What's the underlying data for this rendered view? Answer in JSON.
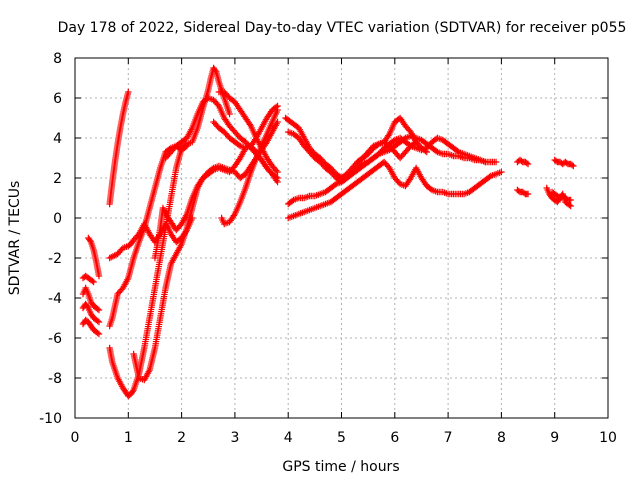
{
  "chart_data": {
    "type": "scatter",
    "title": "Day 178 of 2022, Sidereal Day-to-day VTEC variation (SDTVAR) for receiver p055",
    "xlabel": "GPS time / hours",
    "ylabel": "SDTVAR / TECUs",
    "xlim": [
      0,
      10
    ],
    "ylim": [
      -10,
      8
    ],
    "x_ticks": [
      "0",
      "1",
      "2",
      "3",
      "4",
      "5",
      "6",
      "7",
      "8",
      "9",
      "10"
    ],
    "y_ticks": [
      "-10",
      "-8",
      "-6",
      "-4",
      "-2",
      "0",
      "2",
      "4",
      "6",
      "8"
    ],
    "grid": true,
    "marker": "plus",
    "color": "#ff0000",
    "series": [
      {
        "x": [
          0.15,
          0.2,
          0.25,
          0.3,
          0.35
        ],
        "y": [
          -3.0,
          -2.9,
          -3.0,
          -3.1,
          -3.2
        ]
      },
      {
        "x": [
          0.15,
          0.2,
          0.25,
          0.3,
          0.35,
          0.4,
          0.45
        ],
        "y": [
          -3.8,
          -3.5,
          -3.8,
          -4.2,
          -4.4,
          -4.5,
          -4.6
        ]
      },
      {
        "x": [
          0.15,
          0.2,
          0.25,
          0.3,
          0.35,
          0.4,
          0.45
        ],
        "y": [
          -4.5,
          -4.3,
          -4.5,
          -4.8,
          -5.0,
          -5.1,
          -5.2
        ]
      },
      {
        "x": [
          0.15,
          0.2,
          0.25,
          0.3,
          0.35,
          0.4,
          0.45
        ],
        "y": [
          -5.3,
          -5.1,
          -5.2,
          -5.4,
          -5.6,
          -5.7,
          -5.8
        ]
      },
      {
        "x": [
          0.25,
          0.3,
          0.35,
          0.4,
          0.45
        ],
        "y": [
          -1.0,
          -1.2,
          -1.6,
          -2.2,
          -2.9
        ]
      },
      {
        "x": [
          0.65,
          0.7,
          0.75,
          0.8,
          0.85,
          0.9,
          0.95,
          1.0
        ],
        "y": [
          0.7,
          1.8,
          2.8,
          3.7,
          4.5,
          5.2,
          5.8,
          6.3
        ]
      },
      {
        "x": [
          0.65,
          0.8,
          0.9,
          1.0,
          1.05,
          1.1,
          1.2,
          1.3,
          1.4,
          1.5,
          1.6,
          1.7,
          1.75,
          1.8,
          1.9,
          2.0,
          2.1,
          2.2
        ],
        "y": [
          -2.0,
          -1.8,
          -1.5,
          -1.4,
          -1.3,
          -1.1,
          -0.8,
          -0.3,
          -0.8,
          -1.2,
          -0.8,
          -0.3,
          -0.5,
          -0.8,
          -1.2,
          -1.0,
          -0.6,
          0.0
        ]
      },
      {
        "x": [
          0.65,
          0.7,
          0.8,
          0.9,
          1.0,
          1.05,
          1.1,
          1.2,
          1.3,
          1.4,
          1.5,
          1.6,
          1.7,
          1.8,
          1.9,
          2.0,
          2.1
        ],
        "y": [
          -5.4,
          -5.0,
          -3.8,
          -3.5,
          -3.0,
          -2.5,
          -2.0,
          -1.2,
          -0.5,
          0.5,
          1.5,
          2.5,
          3.3,
          3.5,
          3.6,
          3.4,
          3.6
        ]
      },
      {
        "x": [
          0.65,
          0.7,
          0.8,
          0.9,
          0.95,
          1.0,
          1.05,
          1.1,
          1.2,
          1.3,
          1.4,
          1.5,
          1.6,
          1.7,
          1.8,
          1.9,
          2.0,
          2.1,
          2.2,
          2.3,
          2.4,
          2.5,
          2.55,
          2.6,
          2.65,
          2.7,
          2.8,
          2.9
        ],
        "y": [
          -6.5,
          -7.2,
          -8.0,
          -8.5,
          -8.7,
          -8.9,
          -8.8,
          -8.6,
          -7.8,
          -6.5,
          -5.0,
          -3.5,
          -2.0,
          -0.5,
          1.0,
          2.5,
          3.5,
          3.7,
          3.8,
          4.5,
          5.5,
          6.4,
          7.0,
          7.5,
          7.3,
          6.8,
          6.0,
          5.2
        ]
      },
      {
        "x": [
          1.1,
          1.15,
          1.2,
          1.3,
          1.4,
          1.5,
          1.6,
          1.7,
          1.8,
          1.9,
          2.0,
          2.1,
          2.2,
          2.3,
          2.4,
          2.5,
          2.6,
          2.7,
          2.8,
          2.9,
          3.0,
          3.1,
          3.2,
          3.3,
          3.4,
          3.5,
          3.6,
          3.7,
          3.8
        ],
        "y": [
          -6.8,
          -7.4,
          -8.0,
          -8.1,
          -7.6,
          -6.5,
          -5.0,
          -3.5,
          -2.3,
          -1.8,
          -1.3,
          -0.5,
          0.5,
          1.5,
          2.0,
          2.3,
          2.5,
          2.6,
          2.5,
          2.4,
          2.3,
          2.0,
          2.2,
          2.6,
          3.0,
          3.4,
          3.8,
          4.3,
          4.8
        ]
      },
      {
        "x": [
          1.5,
          1.6,
          1.65,
          1.7,
          1.8,
          1.9,
          2.0,
          2.1,
          2.2,
          2.3,
          2.4,
          2.5,
          2.6,
          2.7,
          2.8,
          2.9,
          3.0,
          3.1,
          3.2,
          3.3,
          3.4,
          3.5,
          3.6,
          3.7,
          3.8
        ],
        "y": [
          -2.0,
          -0.5,
          0.5,
          0.2,
          -0.2,
          -0.6,
          -0.3,
          0.2,
          1.0,
          1.6,
          2.0,
          2.2,
          2.4,
          2.5,
          2.4,
          2.3,
          2.6,
          3.0,
          3.5,
          3.6,
          3.3,
          2.9,
          2.5,
          2.2,
          2.0
        ]
      },
      {
        "x": [
          1.7,
          1.8,
          1.9,
          2.0,
          2.1,
          2.2,
          2.3,
          2.4,
          2.5,
          2.6,
          2.7,
          2.8,
          2.9,
          3.0,
          3.1,
          3.2,
          3.3,
          3.4,
          3.5,
          3.6,
          3.7,
          3.8
        ],
        "y": [
          3.0,
          3.3,
          3.6,
          3.8,
          4.0,
          4.5,
          5.2,
          5.8,
          6.0,
          5.9,
          5.6,
          5.0,
          4.6,
          4.3,
          4.0,
          3.8,
          3.5,
          3.2,
          2.9,
          2.5,
          2.2,
          1.8
        ]
      },
      {
        "x": [
          2.7,
          2.8,
          2.9,
          3.0,
          3.1,
          3.2,
          3.3,
          3.4,
          3.5,
          3.6,
          3.7,
          3.8
        ],
        "y": [
          6.3,
          6.3,
          6.0,
          5.8,
          5.4,
          5.0,
          4.6,
          4.0,
          3.5,
          3.0,
          2.6,
          2.3
        ]
      },
      {
        "x": [
          2.6,
          2.7,
          2.8,
          2.9,
          3.0,
          3.1,
          3.2,
          3.3,
          3.4,
          3.5,
          3.6,
          3.7,
          3.8
        ],
        "y": [
          4.8,
          4.5,
          4.3,
          4.0,
          3.8,
          3.6,
          3.5,
          3.6,
          4.0,
          4.5,
          5.0,
          5.4,
          5.6
        ]
      },
      {
        "x": [
          2.75,
          2.8,
          2.9,
          3.0,
          3.1,
          3.2,
          3.3,
          3.4,
          3.5,
          3.6,
          3.7,
          3.8
        ],
        "y": [
          0.0,
          -0.3,
          -0.2,
          0.2,
          0.8,
          1.5,
          2.3,
          3.0,
          3.6,
          4.2,
          4.8,
          5.4
        ]
      },
      {
        "x": [
          3.95,
          4.0,
          4.1,
          4.2,
          4.3,
          4.4,
          4.5,
          4.6,
          4.7,
          4.8,
          4.9,
          5.0,
          5.1,
          5.2,
          5.3,
          5.4,
          5.5,
          5.6,
          5.7,
          5.8,
          5.9,
          6.0,
          6.1,
          6.2,
          6.3,
          6.4
        ],
        "y": [
          5.0,
          4.9,
          4.7,
          4.5,
          4.0,
          3.5,
          3.2,
          3.0,
          2.7,
          2.5,
          2.2,
          2.0,
          2.2,
          2.5,
          2.8,
          3.0,
          3.2,
          3.5,
          3.7,
          3.8,
          3.6,
          3.3,
          3.0,
          3.3,
          3.6,
          3.8
        ]
      },
      {
        "x": [
          4.0,
          4.1,
          4.2,
          4.3,
          4.4,
          4.5,
          4.6,
          4.7,
          4.8,
          4.9,
          5.0,
          5.1,
          5.2,
          5.3,
          5.4,
          5.5,
          5.6,
          5.7,
          5.8,
          5.9,
          6.0,
          6.1,
          6.2,
          6.3,
          6.4,
          6.5,
          6.6,
          6.7,
          6.8,
          6.9,
          7.0,
          7.1,
          7.2,
          7.3,
          7.4,
          7.5,
          7.6,
          7.7
        ],
        "y": [
          4.3,
          4.2,
          4.0,
          3.6,
          3.3,
          3.0,
          2.8,
          2.5,
          2.3,
          2.0,
          1.8,
          2.0,
          2.3,
          2.5,
          2.7,
          2.8,
          3.0,
          3.2,
          3.5,
          3.7,
          3.9,
          4.0,
          3.8,
          3.6,
          3.5,
          3.4,
          3.5,
          3.8,
          4.0,
          3.9,
          3.7,
          3.5,
          3.3,
          3.2,
          3.1,
          3.0,
          2.9,
          2.8
        ]
      },
      {
        "x": [
          4.0,
          4.1,
          4.2,
          4.3,
          4.4,
          4.5,
          4.6,
          4.7,
          4.8,
          4.9,
          5.0,
          5.1,
          5.2,
          5.3,
          5.4,
          5.5,
          5.6,
          5.7,
          5.8,
          5.9,
          6.0,
          6.1,
          6.2,
          6.3,
          6.4,
          6.5,
          6.6,
          6.7,
          6.8,
          6.9,
          7.0,
          7.1,
          7.2,
          7.3,
          7.4,
          7.5,
          7.6,
          7.7,
          7.8,
          7.9
        ],
        "y": [
          0.7,
          0.9,
          1.0,
          1.0,
          1.1,
          1.1,
          1.2,
          1.3,
          1.5,
          1.7,
          1.8,
          2.0,
          2.2,
          2.4,
          2.6,
          2.8,
          3.0,
          3.2,
          3.3,
          3.4,
          3.6,
          3.8,
          4.0,
          4.1,
          4.0,
          3.9,
          3.7,
          3.5,
          3.3,
          3.2,
          3.2,
          3.1,
          3.1,
          3.0,
          3.0,
          2.9,
          2.9,
          2.8,
          2.8,
          2.8
        ]
      },
      {
        "x": [
          4.0,
          4.1,
          4.2,
          4.3,
          4.4,
          4.5,
          4.6,
          4.7,
          4.8,
          4.9,
          5.0,
          5.1,
          5.2,
          5.3,
          5.4,
          5.5,
          5.6,
          5.7,
          5.8,
          5.9,
          6.0,
          6.1,
          6.2,
          6.3,
          6.4,
          6.5,
          6.6,
          6.7,
          6.8,
          6.9,
          7.0,
          7.1,
          7.2,
          7.3,
          7.4,
          7.5,
          7.6,
          7.7,
          7.8,
          7.9,
          8.0
        ],
        "y": [
          0.0,
          0.1,
          0.2,
          0.3,
          0.4,
          0.5,
          0.6,
          0.7,
          0.8,
          1.0,
          1.2,
          1.4,
          1.6,
          1.8,
          2.0,
          2.2,
          2.4,
          2.6,
          2.8,
          2.5,
          2.0,
          1.7,
          1.6,
          2.0,
          2.5,
          2.0,
          1.6,
          1.4,
          1.3,
          1.3,
          1.2,
          1.2,
          1.2,
          1.2,
          1.3,
          1.5,
          1.7,
          1.9,
          2.1,
          2.2,
          2.3
        ]
      },
      {
        "x": [
          5.3,
          5.4,
          5.5,
          5.6,
          5.7,
          5.8,
          5.9,
          6.0,
          6.1,
          6.2,
          6.3,
          6.4,
          6.5,
          6.6
        ],
        "y": [
          2.8,
          3.0,
          3.3,
          3.6,
          3.7,
          3.8,
          4.2,
          4.8,
          5.0,
          4.6,
          4.3,
          3.8,
          3.5,
          3.3
        ]
      },
      {
        "x": [
          8.3,
          8.35,
          8.4,
          8.45,
          8.5
        ],
        "y": [
          2.8,
          2.9,
          2.8,
          2.8,
          2.7
        ]
      },
      {
        "x": [
          8.3,
          8.35,
          8.4,
          8.45,
          8.5
        ],
        "y": [
          1.4,
          1.3,
          1.3,
          1.2,
          1.2
        ]
      },
      {
        "x": [
          8.85,
          8.9,
          8.95,
          9.0,
          9.05,
          9.1,
          9.15,
          9.2,
          9.25,
          9.3
        ],
        "y": [
          1.5,
          1.2,
          1.0,
          0.9,
          0.8,
          1.0,
          1.2,
          0.8,
          0.7,
          0.6
        ]
      },
      {
        "x": [
          8.95,
          9.0,
          9.05,
          9.1,
          9.15,
          9.2,
          9.25,
          9.3
        ],
        "y": [
          1.3,
          1.2,
          1.1,
          1.0,
          1.1,
          1.0,
          0.9,
          0.9
        ]
      },
      {
        "x": [
          9.0,
          9.05,
          9.1,
          9.15,
          9.2,
          9.25,
          9.3,
          9.35
        ],
        "y": [
          2.9,
          2.8,
          2.8,
          2.7,
          2.8,
          2.7,
          2.7,
          2.6
        ]
      }
    ]
  }
}
